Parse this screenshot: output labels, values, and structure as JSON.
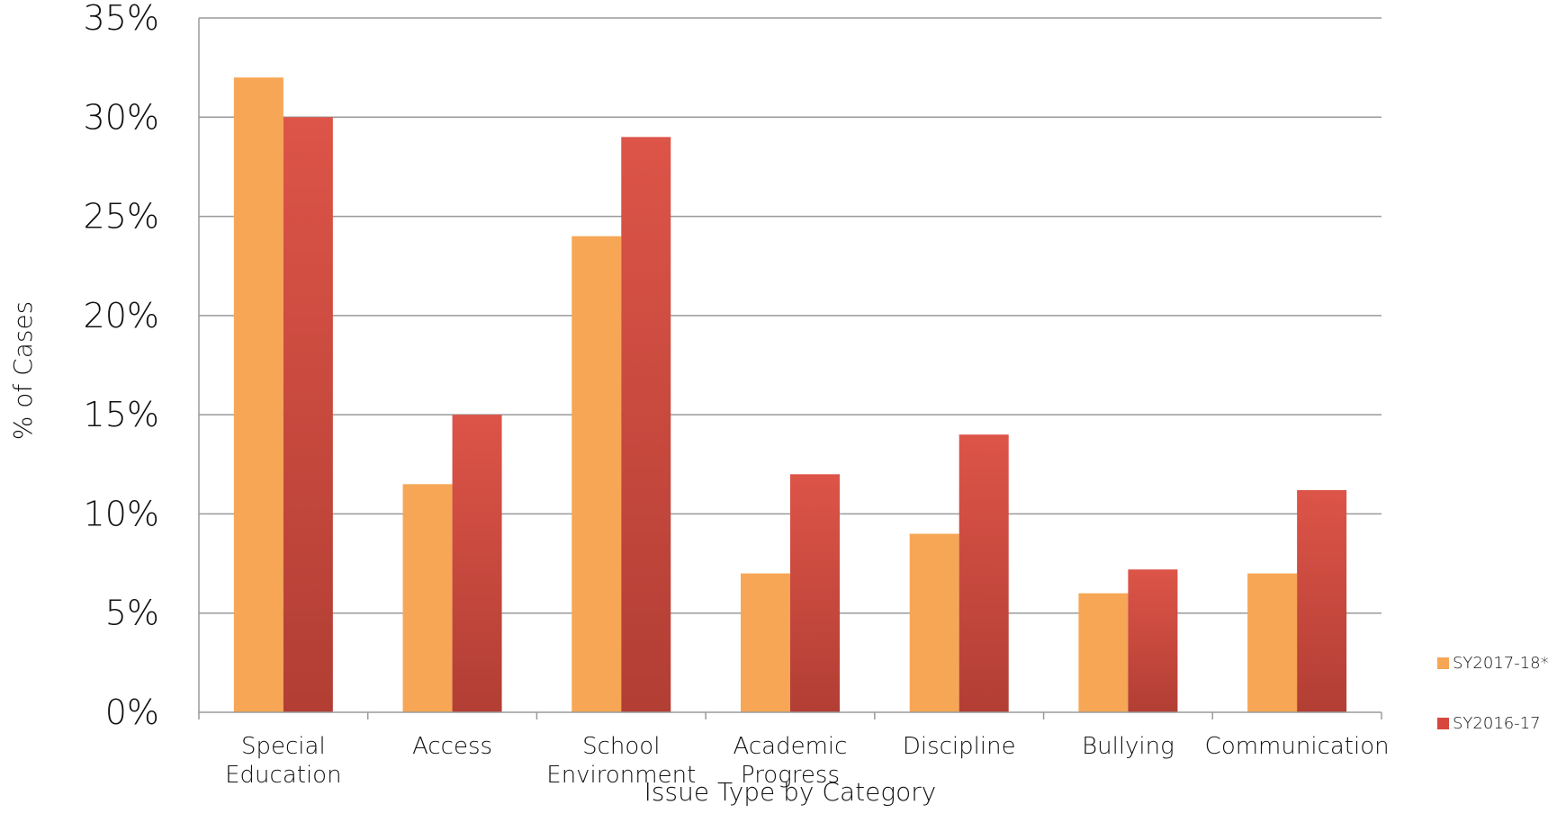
{
  "chart_data": {
    "type": "bar",
    "title": "",
    "xlabel": "Issue Type by Category",
    "ylabel": "% of Cases",
    "ylim": [
      0,
      35
    ],
    "yticks": [
      "0%",
      "5%",
      "10%",
      "15%",
      "20%",
      "25%",
      "30%",
      "35%"
    ],
    "ytick_values": [
      0,
      5,
      10,
      15,
      20,
      25,
      30,
      35
    ],
    "grid": true,
    "legend_position": "right",
    "categories": [
      [
        "Special",
        "Education"
      ],
      [
        "Access"
      ],
      [
        "School",
        "Environment"
      ],
      [
        "Academic",
        "Progress"
      ],
      [
        "Discipline"
      ],
      [
        "Bullying"
      ],
      [
        "Communication"
      ]
    ],
    "series": [
      {
        "name": "SY2017-18*",
        "color": "#F6A655",
        "values": [
          32,
          11.5,
          24,
          7,
          9,
          6,
          7
        ]
      },
      {
        "name": "SY2016-17",
        "color": "#D8473E",
        "values": [
          30,
          15,
          29,
          12,
          14,
          7.2,
          11.2
        ]
      }
    ]
  }
}
